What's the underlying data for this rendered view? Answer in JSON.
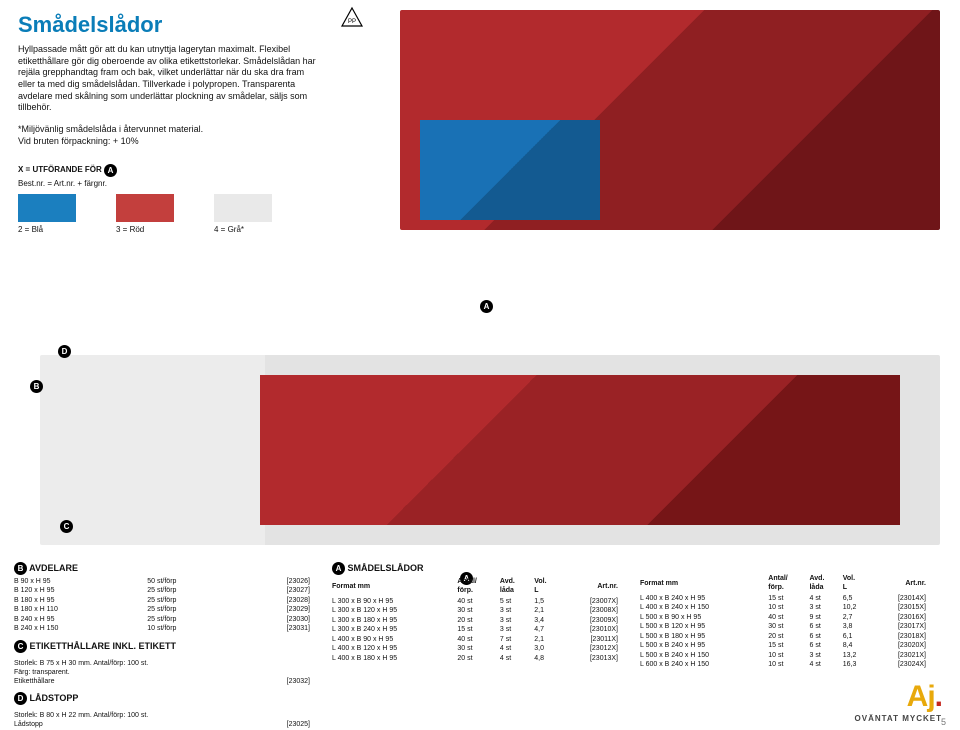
{
  "title": "Smådelslådor",
  "intro": "Hyllpassade mått gör att du kan utnyttja lagerytan maximalt. Flexibel etiketthållare gör dig oberoende av olika etikettstorlekar. Smådelslådan har rejäla grepphandtag fram och bak, vilket underlättar när du ska dra fram eller ta med dig smådelslådan. Tillverkade i polypropen. Transparenta avdelare med skålning som underlättar plockning av smådelar, säljs som tillbehör.",
  "note1": "*Miljövänlig smådelslåda i återvunnet material.",
  "note2": "Vid bruten förpackning: + 10%",
  "x_header": "X = UTFÖRANDE FÖR",
  "x_sub": "Best.nr. = Art.nr. + färgnr.",
  "swatches": [
    {
      "color": "#1b7fbf",
      "label": "2 = Blå"
    },
    {
      "color": "#c33f3d",
      "label": "3 = Röd"
    },
    {
      "color": "#e9e9e9",
      "label": "4 = Grå*"
    }
  ],
  "badges": {
    "A": "A",
    "B": "B",
    "C": "C",
    "D": "D"
  },
  "secB": {
    "title": "AVDELARE",
    "rows": [
      {
        "dim": "B  90 x H  95",
        "qty": "50 st/förp",
        "art": "[23026]"
      },
      {
        "dim": "B 120 x H  95",
        "qty": "25 st/förp",
        "art": "[23027]"
      },
      {
        "dim": "B 180 x H  95",
        "qty": "25 st/förp",
        "art": "[23028]"
      },
      {
        "dim": "B 180 x H 110",
        "qty": "25 st/förp",
        "art": "[23029]"
      },
      {
        "dim": "B 240 x H  95",
        "qty": "25 st/förp",
        "art": "[23030]"
      },
      {
        "dim": "B 240 x H 150",
        "qty": "10 st/förp",
        "art": "[23031]"
      }
    ]
  },
  "secC": {
    "title": "ETIKETTHÅLLARE INKL. ETIKETT",
    "line1": "Storlek: B 75 x H 30 mm. Antal/förp: 100 st.",
    "line2": "Färg: transparent.",
    "row": {
      "name": "Etiketthållare",
      "art": "[23032]"
    }
  },
  "secD": {
    "title": "LÅDSTOPP",
    "line1": "Storlek: B 80 x H 22 mm. Antal/förp: 100 st.",
    "row": {
      "name": "Lådstopp",
      "art": "[23025]"
    }
  },
  "secA": {
    "title": "SMÅDELSLÅDOR",
    "head": {
      "c1": "Format mm",
      "c2": "Antal/",
      "c2b": "förp.",
      "c3": "Avd.",
      "c3b": "låda",
      "c4": "Vol.",
      "c4b": "L",
      "c5": "Art.nr."
    },
    "left": [
      {
        "f": "L 300 x B  90 x H  95",
        "a": "40 st",
        "d": "5 st",
        "v": "1,5",
        "n": "[23007X]"
      },
      {
        "f": "L 300 x B 120 x H  95",
        "a": "30 st",
        "d": "3 st",
        "v": "2,1",
        "n": "[23008X]"
      },
      {
        "f": "L 300 x B 180 x H  95",
        "a": "20 st",
        "d": "3 st",
        "v": "3,4",
        "n": "[23009X]"
      },
      {
        "f": "L 300 x B 240 x H  95",
        "a": "15 st",
        "d": "3 st",
        "v": "4,7",
        "n": "[23010X]"
      },
      {
        "f": "L 400 x B  90 x H  95",
        "a": "40 st",
        "d": "7 st",
        "v": "2,1",
        "n": "[23011X]"
      },
      {
        "f": "L 400 x B 120 x H  95",
        "a": "30 st",
        "d": "4 st",
        "v": "3,0",
        "n": "[23012X]"
      },
      {
        "f": "L 400 x B 180 x H  95",
        "a": "20 st",
        "d": "4 st",
        "v": "4,8",
        "n": "[23013X]"
      }
    ],
    "right": [
      {
        "f": "L 400 x B 240 x H  95",
        "a": "15 st",
        "d": "4 st",
        "v": "6,5",
        "n": "[23014X]"
      },
      {
        "f": "L 400 x B 240 x H 150",
        "a": "10 st",
        "d": "3 st",
        "v": "10,2",
        "n": "[23015X]"
      },
      {
        "f": "L 500 x B  90 x H  95",
        "a": "40 st",
        "d": "9 st",
        "v": "2,7",
        "n": "[23016X]"
      },
      {
        "f": "L 500 x B 120 x H  95",
        "a": "30 st",
        "d": "6 st",
        "v": "3,8",
        "n": "[23017X]"
      },
      {
        "f": "L 500 x B 180 x H  95",
        "a": "20 st",
        "d": "6 st",
        "v": "6,1",
        "n": "[23018X]"
      },
      {
        "f": "L 500 x B 240 x H  95",
        "a": "15 st",
        "d": "6 st",
        "v": "8,4",
        "n": "[23020X]"
      },
      {
        "f": "L 500 x B 240 x H 150",
        "a": "10 st",
        "d": "3 st",
        "v": "13,2",
        "n": "[23021X]"
      },
      {
        "f": "L 600 x B 240 x H 150",
        "a": "10 st",
        "d": "4 st",
        "v": "16,3",
        "n": "[23024X]"
      }
    ]
  },
  "brand": {
    "name": "Aj",
    "tag": "OVÄNTAT MYCKET"
  },
  "page_number": "5"
}
